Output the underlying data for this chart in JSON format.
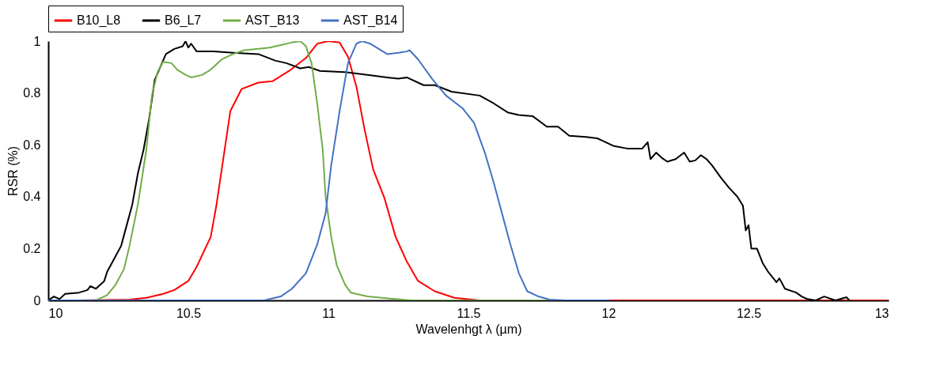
{
  "chart_data": {
    "type": "line",
    "xlabel": "Wavelenhgt λ (µm)",
    "ylabel": "RSR (%)",
    "xlim": [
      10,
      13
    ],
    "ylim": [
      0,
      1
    ],
    "xticks": [
      10,
      10.5,
      11,
      11.5,
      12,
      12.5,
      13
    ],
    "yticks": [
      0,
      0.2,
      0.4,
      0.6,
      0.8,
      1
    ],
    "grid": false,
    "legend": "top",
    "marker": "none",
    "line_style": "solid",
    "series": [
      {
        "name": "B10_L8",
        "color": "#ff0000",
        "x": [
          10.1,
          10.29,
          10.35,
          10.41,
          10.45,
          10.5,
          10.53,
          10.58,
          10.6,
          10.65,
          10.69,
          10.75,
          10.8,
          10.86,
          10.92,
          10.96,
          11.0,
          11.04,
          11.07,
          11.1,
          11.13,
          11.16,
          11.2,
          11.24,
          11.28,
          11.32,
          11.38,
          11.45,
          11.54,
          13
        ],
        "values": [
          0,
          0.003,
          0.01,
          0.025,
          0.04,
          0.075,
          0.13,
          0.245,
          0.365,
          0.73,
          0.815,
          0.84,
          0.845,
          0.885,
          0.935,
          0.99,
          1.0,
          0.995,
          0.94,
          0.825,
          0.655,
          0.505,
          0.395,
          0.245,
          0.15,
          0.075,
          0.035,
          0.01,
          0,
          0
        ]
      },
      {
        "name": "B6_L7",
        "color": "#000000",
        "x": [
          10.0,
          10.02,
          10.04,
          10.06,
          10.11,
          10.14,
          10.15,
          10.17,
          10.2,
          10.21,
          10.24,
          10.26,
          10.28,
          10.3,
          10.32,
          10.34,
          10.36,
          10.38,
          10.42,
          10.45,
          10.48,
          10.49,
          10.5,
          10.51,
          10.53,
          10.59,
          10.66,
          10.75,
          10.81,
          10.85,
          10.9,
          10.93,
          10.97,
          11.06,
          11.14,
          11.21,
          11.25,
          11.28,
          11.34,
          11.38,
          11.44,
          11.54,
          11.59,
          11.64,
          11.68,
          11.73,
          11.78,
          11.82,
          11.86,
          11.92,
          11.96,
          12.02,
          12.07,
          12.12,
          12.14,
          12.15,
          12.17,
          12.19,
          12.21,
          12.24,
          12.27,
          12.29,
          12.31,
          12.33,
          12.35,
          12.37,
          12.4,
          12.43,
          12.46,
          12.48,
          12.49,
          12.5,
          12.51,
          12.53,
          12.55,
          12.57,
          12.6,
          12.61,
          12.63,
          12.67,
          12.69,
          12.71,
          12.74,
          12.77,
          12.81,
          12.85,
          12.86
        ],
        "values": [
          0,
          0.015,
          0.005,
          0.025,
          0.03,
          0.04,
          0.055,
          0.045,
          0.075,
          0.11,
          0.17,
          0.21,
          0.29,
          0.37,
          0.49,
          0.58,
          0.7,
          0.85,
          0.95,
          0.97,
          0.98,
          1.0,
          0.975,
          0.99,
          0.96,
          0.96,
          0.955,
          0.95,
          0.925,
          0.915,
          0.895,
          0.9,
          0.885,
          0.88,
          0.87,
          0.86,
          0.855,
          0.86,
          0.83,
          0.83,
          0.805,
          0.79,
          0.76,
          0.725,
          0.715,
          0.71,
          0.67,
          0.67,
          0.635,
          0.63,
          0.625,
          0.595,
          0.585,
          0.585,
          0.61,
          0.545,
          0.57,
          0.55,
          0.535,
          0.545,
          0.57,
          0.535,
          0.54,
          0.56,
          0.545,
          0.52,
          0.475,
          0.435,
          0.4,
          0.365,
          0.27,
          0.29,
          0.2,
          0.2,
          0.145,
          0.11,
          0.07,
          0.085,
          0.045,
          0.03,
          0.015,
          0.005,
          0,
          0.015,
          0,
          0.012,
          0
        ]
      },
      {
        "name": "AST_B13",
        "color": "#70ad47",
        "x": [
          10.0,
          10.17,
          10.21,
          10.24,
          10.27,
          10.29,
          10.32,
          10.35,
          10.37,
          10.39,
          10.41,
          10.44,
          10.46,
          10.49,
          10.51,
          10.55,
          10.58,
          10.62,
          10.66,
          10.7,
          10.75,
          10.79,
          10.83,
          10.87,
          10.9,
          10.92,
          10.94,
          10.96,
          10.98,
          10.99,
          11.01,
          11.03,
          11.06,
          11.08,
          11.14,
          11.23,
          11.3,
          12.0
        ],
        "values": [
          0,
          0,
          0.02,
          0.06,
          0.12,
          0.21,
          0.37,
          0.58,
          0.79,
          0.88,
          0.92,
          0.915,
          0.89,
          0.87,
          0.86,
          0.87,
          0.89,
          0.93,
          0.95,
          0.965,
          0.97,
          0.975,
          0.985,
          0.995,
          1.0,
          0.98,
          0.915,
          0.76,
          0.58,
          0.4,
          0.245,
          0.135,
          0.06,
          0.03,
          0.015,
          0.006,
          0,
          0
        ]
      },
      {
        "name": "AST_B14",
        "color": "#4472c4",
        "x": [
          10.0,
          10.77,
          10.83,
          10.87,
          10.92,
          10.96,
          10.99,
          11.01,
          11.04,
          11.07,
          11.1,
          11.12,
          11.15,
          11.18,
          11.21,
          11.25,
          11.28,
          11.29,
          11.32,
          11.37,
          11.42,
          11.48,
          11.52,
          11.56,
          11.59,
          11.62,
          11.65,
          11.68,
          11.71,
          11.75,
          11.79,
          11.85,
          12.0
        ],
        "values": [
          0,
          0,
          0.015,
          0.045,
          0.105,
          0.215,
          0.335,
          0.52,
          0.73,
          0.915,
          0.99,
          1.0,
          0.99,
          0.97,
          0.95,
          0.955,
          0.96,
          0.965,
          0.93,
          0.855,
          0.79,
          0.74,
          0.685,
          0.565,
          0.455,
          0.335,
          0.215,
          0.105,
          0.035,
          0.015,
          0.003,
          0,
          0
        ]
      }
    ]
  }
}
